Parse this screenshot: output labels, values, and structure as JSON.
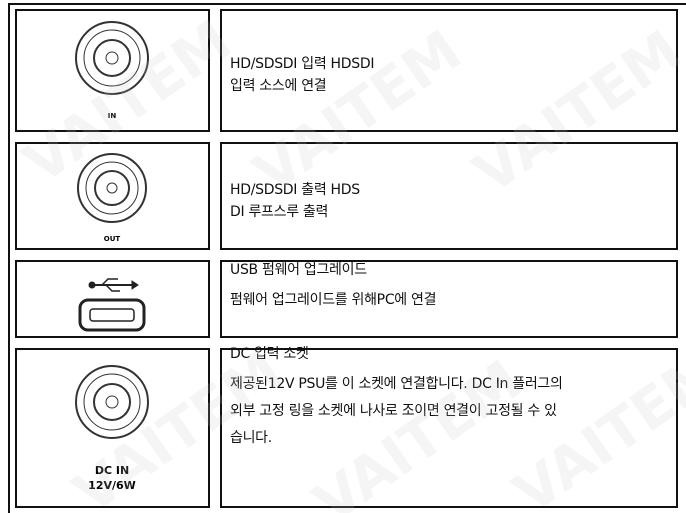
{
  "watermark": "VAITEM",
  "rows": [
    {
      "icon_label": [
        "IN"
      ],
      "lines": [
        "HD/SDSDI 입력  HDSDI",
        "입력 소스에 연결"
      ]
    },
    {
      "icon_label": [
        "OUT"
      ],
      "lines": [
        "HD/SDSDI 출력  HDS",
        "DI 루프스루 출력"
      ]
    },
    {
      "icon_label": [],
      "lines": [
        "USB 펌웨어 업그레이드",
        "펌웨어 업그레이드를 위해PC에 연결"
      ]
    },
    {
      "icon_label": [
        "DC IN",
        "12V/6W"
      ],
      "lines": [
        "DC 입력 소켓",
        "제공된12V PSU를 이 소켓에 연결합니다. DC In 플러그의",
        "외부 고정 링을 소켓에 나사로 조이면 연결이 고정될 수 있",
        "습니다."
      ]
    }
  ]
}
